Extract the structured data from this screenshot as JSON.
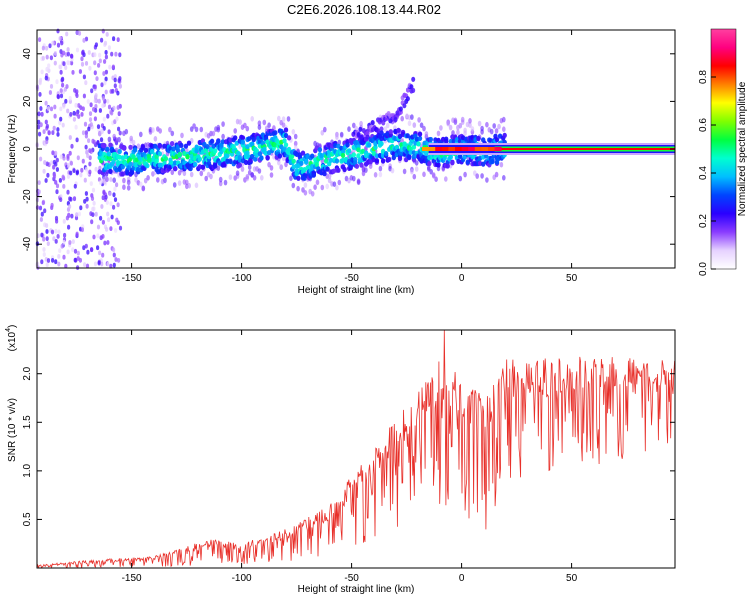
{
  "title": "C2E6.2026.108.13.44.R02",
  "colors": {
    "snr_line": "#e8302a",
    "axis": "#000000",
    "background": "#ffffff"
  },
  "chart_data": [
    {
      "type": "heatmap",
      "name": "spectrogram",
      "title": "C2E6.2026.108.13.44.R02",
      "xlabel": "Height of straight line (km)",
      "ylabel": "Frequency (Hz)",
      "xlim": [
        -193,
        97
      ],
      "ylim": [
        -50,
        50
      ],
      "xticks": [
        -150,
        -100,
        -50,
        0,
        50
      ],
      "xtick_labels": [
        "-150",
        "-100",
        "-50",
        "0",
        "50"
      ],
      "yticks": [
        -40,
        -20,
        0,
        20,
        40
      ],
      "ytick_labels": [
        "-40",
        "-20",
        "0",
        "20",
        "40"
      ],
      "colorbar": {
        "label": "Normalized spectral amplitude",
        "range": [
          0,
          1
        ],
        "ticks": [
          0.0,
          0.2,
          0.4,
          0.6,
          0.8
        ],
        "tick_labels": [
          "0.0",
          "0.2",
          "0.4",
          "0.6",
          "0.8"
        ],
        "colormap": [
          "#ffffff",
          "#e6d2ff",
          "#8a3cff",
          "#2a00ff",
          "#0044ff",
          "#00bfff",
          "#00ffd0",
          "#00ff40",
          "#80ff00",
          "#ffff00",
          "#ff8000",
          "#ff0000",
          "#ff0080",
          "#ff40a0"
        ]
      },
      "ridge": [
        {
          "x": -165,
          "f": -4
        },
        {
          "x": -150,
          "f": -5
        },
        {
          "x": -140,
          "f": -4
        },
        {
          "x": -125,
          "f": -3
        },
        {
          "x": -110,
          "f": -2
        },
        {
          "x": -100,
          "f": -1
        },
        {
          "x": -90,
          "f": 1
        },
        {
          "x": -80,
          "f": 3
        },
        {
          "x": -75,
          "f": -8
        },
        {
          "x": -65,
          "f": -5
        },
        {
          "x": -50,
          "f": -2
        },
        {
          "x": -40,
          "f": 0
        },
        {
          "x": -30,
          "f": 2
        },
        {
          "x": -20,
          "f": 1
        },
        {
          "x": -10,
          "f": -2
        },
        {
          "x": 0,
          "f": 0
        },
        {
          "x": 10,
          "f": -1
        },
        {
          "x": 20,
          "f": 0
        },
        {
          "x": 50,
          "f": 0
        },
        {
          "x": 97,
          "f": 0
        }
      ],
      "secondary_ridge": [
        {
          "x": -50,
          "f": 4
        },
        {
          "x": -40,
          "f": 9
        },
        {
          "x": -30,
          "f": 14
        },
        {
          "x": -22,
          "f": 27
        }
      ]
    },
    {
      "type": "line",
      "name": "snr",
      "xlabel": "Height of straight line (km)",
      "ylabel": "SNR (10 * v/v)",
      "y_scale_label": "(x10",
      "y_scale_exp": "4",
      "xlim": [
        -193,
        97
      ],
      "ylim": [
        0,
        2.45
      ],
      "xticks": [
        -150,
        -100,
        -50,
        0,
        50
      ],
      "xtick_labels": [
        "-150",
        "-100",
        "-50",
        "0",
        "50"
      ],
      "yticks": [
        0.5,
        1.0,
        1.5,
        2.0
      ],
      "ytick_labels": [
        "0.5",
        "1.0",
        "1.5",
        "2.0"
      ],
      "envelope": [
        {
          "x": -193,
          "lo": 0.0,
          "hi": 0.03
        },
        {
          "x": -170,
          "lo": 0.0,
          "hi": 0.08
        },
        {
          "x": -140,
          "lo": 0.01,
          "hi": 0.12
        },
        {
          "x": -115,
          "lo": 0.02,
          "hi": 0.3
        },
        {
          "x": -100,
          "lo": 0.03,
          "hi": 0.25
        },
        {
          "x": -80,
          "lo": 0.05,
          "hi": 0.4
        },
        {
          "x": -60,
          "lo": 0.1,
          "hi": 0.65
        },
        {
          "x": -45,
          "lo": 0.2,
          "hi": 1.1
        },
        {
          "x": -35,
          "lo": 0.3,
          "hi": 1.4
        },
        {
          "x": -20,
          "lo": 0.45,
          "hi": 1.8
        },
        {
          "x": -10,
          "lo": 0.55,
          "hi": 2.2
        },
        {
          "x": 0,
          "lo": 0.6,
          "hi": 1.95
        },
        {
          "x": 10,
          "lo": 0.3,
          "hi": 1.8
        },
        {
          "x": 20,
          "lo": 0.85,
          "hi": 2.15
        },
        {
          "x": 30,
          "lo": 0.95,
          "hi": 2.15
        },
        {
          "x": 50,
          "lo": 1.0,
          "hi": 2.18
        },
        {
          "x": 70,
          "lo": 1.1,
          "hi": 2.18
        },
        {
          "x": 97,
          "lo": 1.15,
          "hi": 2.17
        }
      ],
      "peak": {
        "x": -8,
        "y": 2.45
      }
    }
  ]
}
